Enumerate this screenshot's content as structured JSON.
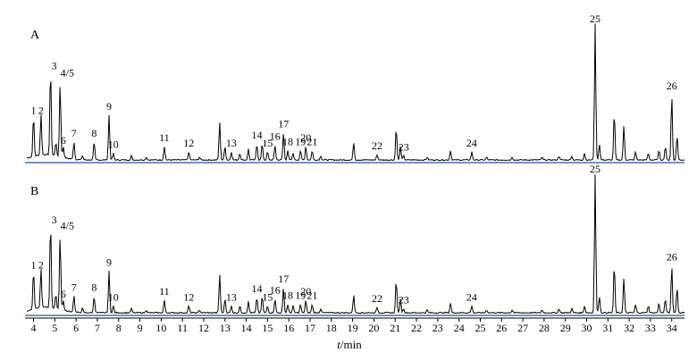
{
  "chart_data": [
    {
      "type": "line",
      "panel": "A",
      "x_unit": "t/min",
      "xlim": [
        3.6,
        34.6
      ],
      "peaks": [
        {
          "label": "1",
          "x": 4.0,
          "y": 0.3
        },
        {
          "label": "2",
          "x": 4.35,
          "y": 0.3
        },
        {
          "label": "3",
          "x": 4.8,
          "y": 0.64
        },
        {
          "label": "4/5",
          "x": 5.25,
          "y": 0.55
        },
        {
          "label": "6",
          "x": 5.4,
          "y": 0.08
        },
        {
          "label": "7",
          "x": 5.9,
          "y": 0.13
        },
        {
          "label": "8",
          "x": 6.85,
          "y": 0.13
        },
        {
          "label": "9",
          "x": 7.55,
          "y": 0.33
        },
        {
          "label": "10",
          "x": 7.75,
          "y": 0.05
        },
        {
          "label": "11",
          "x": 10.15,
          "y": 0.1
        },
        {
          "label": "12",
          "x": 11.3,
          "y": 0.06
        },
        {
          "label": "13",
          "x": 13.3,
          "y": 0.06
        },
        {
          "label": "14",
          "x": 14.5,
          "y": 0.12
        },
        {
          "label": "15",
          "x": 15.0,
          "y": 0.06
        },
        {
          "label": "16",
          "x": 15.35,
          "y": 0.11
        },
        {
          "label": "17",
          "x": 15.75,
          "y": 0.2
        },
        {
          "label": "18",
          "x": 15.95,
          "y": 0.07
        },
        {
          "label": "19",
          "x": 16.55,
          "y": 0.07
        },
        {
          "label": "20",
          "x": 16.8,
          "y": 0.1
        },
        {
          "label": "21",
          "x": 17.1,
          "y": 0.07
        },
        {
          "label": "22",
          "x": 20.15,
          "y": 0.04
        },
        {
          "label": "23",
          "x": 21.4,
          "y": 0.03
        },
        {
          "label": "24",
          "x": 24.6,
          "y": 0.06
        },
        {
          "label": "25",
          "x": 30.4,
          "y": 1.0
        },
        {
          "label": "26",
          "x": 34.0,
          "y": 0.48
        }
      ]
    },
    {
      "type": "line",
      "panel": "B",
      "x_unit": "t/min",
      "xlim": [
        3.6,
        34.6
      ],
      "peaks": [
        {
          "label": "1",
          "x": 4.0,
          "y": 0.28
        },
        {
          "label": "2",
          "x": 4.35,
          "y": 0.28
        },
        {
          "label": "3",
          "x": 4.8,
          "y": 0.62
        },
        {
          "label": "4/5",
          "x": 5.25,
          "y": 0.54
        },
        {
          "label": "6",
          "x": 5.4,
          "y": 0.07
        },
        {
          "label": "7",
          "x": 5.9,
          "y": 0.12
        },
        {
          "label": "8",
          "x": 6.85,
          "y": 0.12
        },
        {
          "label": "9",
          "x": 7.55,
          "y": 0.3
        },
        {
          "label": "10",
          "x": 7.75,
          "y": 0.05
        },
        {
          "label": "11",
          "x": 10.15,
          "y": 0.09
        },
        {
          "label": "12",
          "x": 11.3,
          "y": 0.05
        },
        {
          "label": "13",
          "x": 13.3,
          "y": 0.05
        },
        {
          "label": "14",
          "x": 14.5,
          "y": 0.11
        },
        {
          "label": "15",
          "x": 15.0,
          "y": 0.05
        },
        {
          "label": "16",
          "x": 15.35,
          "y": 0.1
        },
        {
          "label": "17",
          "x": 15.75,
          "y": 0.18
        },
        {
          "label": "18",
          "x": 15.95,
          "y": 0.06
        },
        {
          "label": "19",
          "x": 16.55,
          "y": 0.06
        },
        {
          "label": "20",
          "x": 16.8,
          "y": 0.09
        },
        {
          "label": "21",
          "x": 17.1,
          "y": 0.06
        },
        {
          "label": "22",
          "x": 20.15,
          "y": 0.04
        },
        {
          "label": "23",
          "x": 21.4,
          "y": 0.03
        },
        {
          "label": "24",
          "x": 24.6,
          "y": 0.05
        },
        {
          "label": "25",
          "x": 30.4,
          "y": 1.0
        },
        {
          "label": "26",
          "x": 34.0,
          "y": 0.34
        }
      ]
    }
  ],
  "x_axis": {
    "ticks": [
      4,
      5,
      6,
      7,
      8,
      9,
      10,
      11,
      12,
      13,
      14,
      15,
      16,
      17,
      18,
      19,
      20,
      21,
      22,
      23,
      24,
      25,
      26,
      27,
      28,
      29,
      30,
      31,
      32,
      33,
      34
    ],
    "title_italic": "t",
    "title_rest": "/min"
  },
  "colors": {
    "trace": "#000000",
    "baseline": "#4a6fa8",
    "axis": "#000000"
  }
}
